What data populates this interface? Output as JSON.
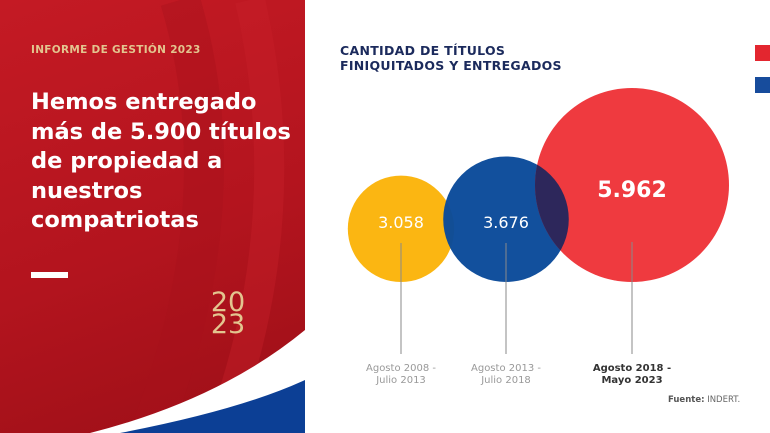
{
  "left_panel": {
    "kicker": "INFORME DE GESTIÓN 2023",
    "headline": "Hemos entregado más de 5.900 títulos de propiedad a nuestros compatriotas",
    "year_top": "20",
    "year_bottom": "23"
  },
  "colors": {
    "red": "#ef3a3f",
    "blue": "#0a4a9a",
    "yellow": "#fbb40a",
    "gold": "#e3c58f",
    "navy": "#1b2a5c"
  },
  "chart_data": {
    "type": "bubble",
    "title": "CANTIDAD DE TÍTULOS FINIQUITADOS Y ENTREGADOS",
    "categories": [
      "Agosto 2008 - Julio 2013",
      "Agosto 2013 - Julio 2018",
      "Agosto 2018 - Mayo 2023"
    ],
    "values": [
      3058,
      3676,
      5962
    ],
    "labels": [
      "3.058",
      "3.676",
      "5.962"
    ],
    "colors": [
      "#fbb40a",
      "#0a4a9a",
      "#ef3a3f"
    ]
  },
  "source": {
    "label": "Fuente:",
    "value": "INDERT."
  }
}
